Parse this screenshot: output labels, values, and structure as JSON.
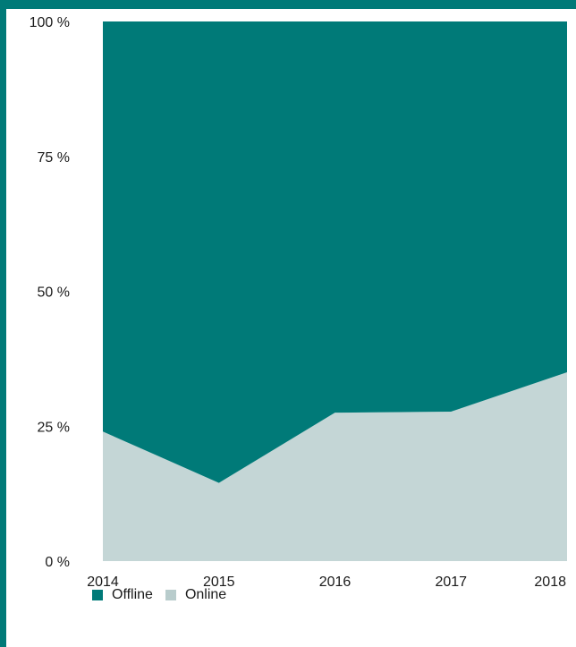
{
  "chart_data": {
    "type": "area",
    "stacked": true,
    "x": [
      "2014",
      "2015",
      "2016",
      "2017",
      "2018"
    ],
    "series": [
      {
        "name": "Online",
        "values": [
          24,
          14.5,
          27.5,
          27.7,
          35
        ],
        "color": "#c4d6d6"
      },
      {
        "name": "Offline",
        "values": [
          76,
          85.5,
          72.5,
          72.3,
          65
        ],
        "color": "#007a78"
      }
    ],
    "ylim": [
      0,
      100
    ],
    "yticks": [
      "0 %",
      "25 %",
      "50 %",
      "75 %",
      "100 %"
    ],
    "xticks": [
      "2014",
      "2015",
      "2016",
      "2017",
      "2018"
    ],
    "grid": false,
    "legend": {
      "placement": "bottom-left",
      "order": [
        "Offline",
        "Online"
      ]
    },
    "frame_color": "#007a78"
  }
}
